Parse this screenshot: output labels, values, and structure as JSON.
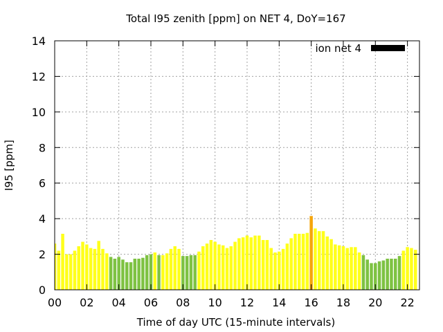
{
  "chart_data": {
    "type": "bar",
    "title": "Total I95 zenith [ppm] on NET 4, DoY=167",
    "xlabel": "Time of day UTC (15-minute intervals)",
    "ylabel": "I95 [ppm]",
    "interval_hours": 0.25,
    "x_range_hours": [
      0,
      22.75
    ],
    "ylim": [
      0,
      14
    ],
    "yticks": [
      "0",
      "2",
      "4",
      "6",
      "8",
      "10",
      "12",
      "14"
    ],
    "xticks": [
      "00",
      "02",
      "04",
      "06",
      "08",
      "10",
      "12",
      "14",
      "16",
      "18",
      "20",
      "22"
    ],
    "grid": true,
    "legend": {
      "label": "ion net 4",
      "color": "#000000",
      "position": "top-right"
    },
    "colors": {
      "yellow": "#ffff1a",
      "green": "#7ec242",
      "orange": "#f5a50c"
    },
    "values": [
      2.6,
      2.2,
      3.15,
      2.0,
      2.0,
      2.2,
      2.45,
      2.7,
      2.55,
      2.35,
      2.3,
      2.75,
      2.3,
      2.05,
      1.85,
      1.75,
      1.85,
      1.7,
      1.55,
      1.55,
      1.75,
      1.75,
      1.8,
      1.95,
      2.0,
      2.1,
      1.95,
      1.95,
      2.05,
      2.3,
      2.45,
      2.3,
      1.9,
      1.9,
      1.95,
      1.95,
      2.15,
      2.45,
      2.6,
      2.8,
      2.7,
      2.55,
      2.5,
      2.35,
      2.45,
      2.7,
      2.9,
      2.95,
      3.05,
      2.95,
      3.05,
      3.05,
      2.8,
      2.8,
      2.35,
      2.1,
      2.15,
      2.3,
      2.6,
      2.9,
      3.15,
      3.15,
      3.15,
      3.2,
      4.15,
      3.45,
      3.3,
      3.3,
      3.0,
      2.85,
      2.55,
      2.5,
      2.45,
      2.35,
      2.4,
      2.4,
      2.1,
      1.95,
      1.7,
      1.5,
      1.5,
      1.6,
      1.65,
      1.75,
      1.75,
      1.75,
      1.9,
      2.2,
      2.4,
      2.35,
      2.25
    ],
    "bar_colors": [
      "yellow",
      "yellow",
      "yellow",
      "yellow",
      "yellow",
      "yellow",
      "yellow",
      "yellow",
      "yellow",
      "yellow",
      "yellow",
      "yellow",
      "yellow",
      "yellow",
      "green",
      "green",
      "green",
      "green",
      "green",
      "green",
      "green",
      "green",
      "green",
      "green",
      "green",
      "yellow",
      "green",
      "yellow",
      "yellow",
      "yellow",
      "yellow",
      "yellow",
      "green",
      "green",
      "green",
      "green",
      "yellow",
      "yellow",
      "yellow",
      "yellow",
      "yellow",
      "yellow",
      "yellow",
      "yellow",
      "yellow",
      "yellow",
      "yellow",
      "yellow",
      "yellow",
      "yellow",
      "yellow",
      "yellow",
      "yellow",
      "yellow",
      "yellow",
      "yellow",
      "yellow",
      "yellow",
      "yellow",
      "yellow",
      "yellow",
      "yellow",
      "yellow",
      "yellow",
      "orange",
      "yellow",
      "yellow",
      "yellow",
      "yellow",
      "yellow",
      "yellow",
      "yellow",
      "yellow",
      "yellow",
      "yellow",
      "yellow",
      "yellow",
      "green",
      "green",
      "green",
      "green",
      "green",
      "green",
      "green",
      "green",
      "green",
      "green",
      "yellow",
      "yellow",
      "yellow",
      "yellow"
    ]
  }
}
